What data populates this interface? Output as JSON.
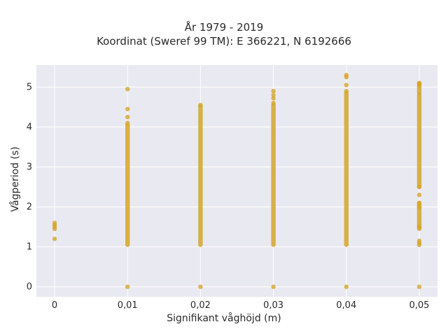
{
  "chart_data": {
    "type": "scatter",
    "title": "År 1979 - 2019",
    "subtitle": "Koordinat (Sweref 99 TM): E 366221, N 6192666",
    "xlabel": "Signifikant våghöjd (m)",
    "ylabel": "Vågperiod (s)",
    "x_tick_labels": [
      "0",
      "0,01",
      "0,02",
      "0,03",
      "0,04",
      "0,05"
    ],
    "x_ticks": [
      0,
      0.01,
      0.02,
      0.03,
      0.04,
      0.05
    ],
    "y_tick_labels": [
      "0",
      "1",
      "2",
      "3",
      "4",
      "5"
    ],
    "y_ticks": [
      0,
      1,
      2,
      3,
      4,
      5
    ],
    "xlim": [
      -0.0025,
      0.0525
    ],
    "ylim": [
      -0.25,
      5.55
    ],
    "grid": true,
    "colors": {
      "marker": "#d4a52a",
      "plot_bg": "#e9e9f1",
      "grid": "#ffffff"
    },
    "series": [
      {
        "values": [
          {
            "x": 0,
            "y_points": [
              1.2,
              1.45,
              1.5,
              1.55,
              1.6
            ]
          },
          {
            "x": 0.01,
            "y_points": [
              0,
              4.1,
              4.25,
              4.45,
              4.95
            ],
            "y_ranges": [
              [
                1.05,
                4.05
              ]
            ]
          },
          {
            "x": 0.02,
            "y_points": [
              0,
              4.55
            ],
            "y_ranges": [
              [
                1.05,
                4.52
              ]
            ]
          },
          {
            "x": 0.03,
            "y_points": [
              0,
              4.6,
              4.72,
              4.8,
              4.9
            ],
            "y_ranges": [
              [
                1.05,
                4.55
              ]
            ]
          },
          {
            "x": 0.04,
            "y_points": [
              0,
              4.9,
              5.05,
              5.25,
              5.3
            ],
            "y_ranges": [
              [
                1.05,
                4.85
              ]
            ]
          },
          {
            "x": 0.05,
            "y_points": [
              0,
              1.05,
              1.1,
              1.15,
              1.5,
              2.0,
              2.1,
              2.3,
              2.5,
              5.05,
              5.1
            ],
            "y_ranges": [
              [
                1.45,
                2.1
              ],
              [
                2.5,
                4.8
              ],
              [
                4.85,
                5.1
              ]
            ]
          }
        ]
      }
    ]
  }
}
